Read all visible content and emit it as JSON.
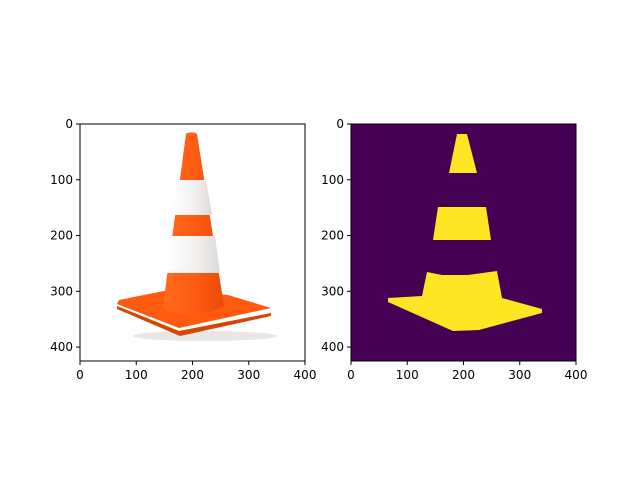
{
  "chart_data": [
    {
      "type": "image",
      "panel": "left",
      "content": "photo of orange-and-white traffic cone on white background",
      "xlim": [
        0,
        400
      ],
      "ylim": [
        425,
        0
      ],
      "xticks": [
        0,
        100,
        200,
        300,
        400
      ],
      "yticks": [
        0,
        100,
        200,
        300,
        400
      ],
      "grid": false,
      "colors": {
        "cone": "#ff5a12",
        "stripe": "#f4f2f0",
        "shadow": "#e24a08",
        "background": "#ffffff"
      }
    },
    {
      "type": "image",
      "panel": "right",
      "content": "binary mask of cone (orange regions) rendered with viridis colormap",
      "xlim": [
        0,
        400
      ],
      "ylim": [
        425,
        0
      ],
      "xticks": [
        0,
        100,
        200,
        300,
        400
      ],
      "yticks": [
        0,
        100,
        200,
        300,
        400
      ],
      "grid": false,
      "colors": {
        "background": "#440154",
        "mask": "#fde725"
      }
    }
  ]
}
